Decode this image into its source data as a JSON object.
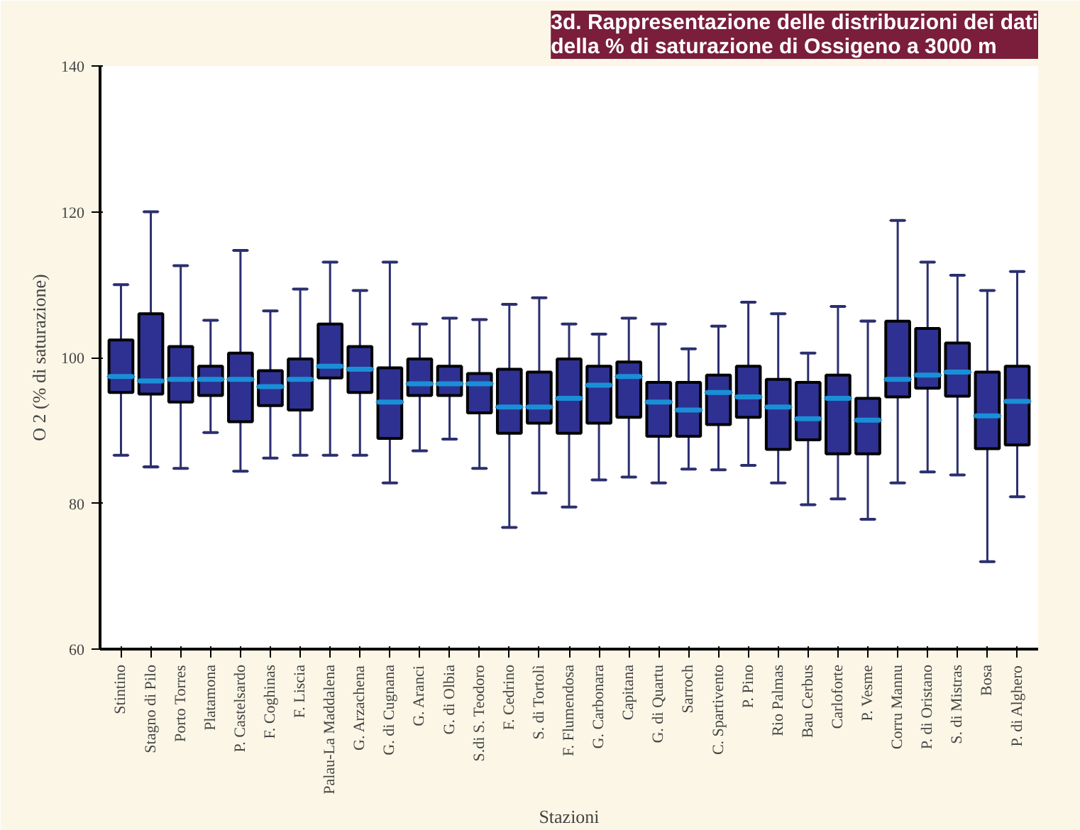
{
  "chart_data": {
    "type": "box",
    "title": "3d. Rappresentazione delle distribuzioni dei dati\ndella % di saturazione di Ossigeno a 3000 m",
    "xlabel": "Stazioni",
    "ylabel": "O 2 (% di saturazione)",
    "categories": [
      "Stintino",
      "Stagno di Pilo",
      "Porto Torres",
      "Platamona",
      "P. Castelsardo",
      "F. Coghinas",
      "F. Liscia",
      "Palau-La Maddalena",
      "G. Arzachena",
      "G. di Cugnana",
      "G. Aranci",
      "G. di Olbia",
      "S.di S. Teodoro",
      "F. Cedrino",
      "S. di Tortolì",
      "F. Flumendosa",
      "G. Carbonara",
      "Capitana",
      "G. di Quartu",
      "Sarroch",
      "C. Spartivento",
      "P. Pino",
      "Rio Palmas",
      "Bau Cerbus",
      "Carloforte",
      "P. Vesme",
      "Corru Mannu",
      "P. di Oristano",
      "S. di Mistras",
      "Bosa",
      "P. di Alghero"
    ],
    "series": [
      {
        "color": "#2e3192",
        "boxes": [
          {
            "low": 86.6,
            "q1": 95.2,
            "median": 97.4,
            "q3": 102.4,
            "high": 110
          },
          {
            "low": 85,
            "q1": 95,
            "median": 96.8,
            "q3": 106,
            "high": 120
          },
          {
            "low": 84.8,
            "q1": 93.9,
            "median": 97,
            "q3": 101.5,
            "high": 112.6
          },
          {
            "low": 89.7,
            "q1": 94.8,
            "median": 97,
            "q3": 98.8,
            "high": 105.1
          },
          {
            "low": 84.4,
            "q1": 91.2,
            "median": 97,
            "q3": 100.6,
            "high": 114.7
          },
          {
            "low": 86.2,
            "q1": 93.4,
            "median": 96,
            "q3": 98.2,
            "high": 106.4
          },
          {
            "low": 86.6,
            "q1": 92.8,
            "median": 97,
            "q3": 99.8,
            "high": 109.4
          },
          {
            "low": 86.6,
            "q1": 97.2,
            "median": 98.8,
            "q3": 104.6,
            "high": 113.1
          },
          {
            "low": 86.6,
            "q1": 95.2,
            "median": 98.4,
            "q3": 101.5,
            "high": 109.2
          },
          {
            "low": 82.8,
            "q1": 88.9,
            "median": 93.9,
            "q3": 98.6,
            "high": 113.1
          },
          {
            "low": 87.2,
            "q1": 94.8,
            "median": 96.4,
            "q3": 99.8,
            "high": 104.6
          },
          {
            "low": 88.8,
            "q1": 94.8,
            "median": 96.4,
            "q3": 98.8,
            "high": 105.4
          },
          {
            "low": 84.8,
            "q1": 92.4,
            "median": 96.4,
            "q3": 97.8,
            "high": 105.2
          },
          {
            "low": 76.7,
            "q1": 89.6,
            "median": 93.2,
            "q3": 98.4,
            "high": 107.3
          },
          {
            "low": 81.4,
            "q1": 91,
            "median": 93.2,
            "q3": 98,
            "high": 108.2
          },
          {
            "low": 79.5,
            "q1": 89.6,
            "median": 94.4,
            "q3": 99.8,
            "high": 104.6
          },
          {
            "low": 83.2,
            "q1": 91,
            "median": 96.2,
            "q3": 98.8,
            "high": 103.2
          },
          {
            "low": 83.6,
            "q1": 91.8,
            "median": 97.4,
            "q3": 99.4,
            "high": 105.4
          },
          {
            "low": 82.8,
            "q1": 89.2,
            "median": 93.9,
            "q3": 96.6,
            "high": 104.6
          },
          {
            "low": 84.7,
            "q1": 89.2,
            "median": 92.8,
            "q3": 96.6,
            "high": 101.2
          },
          {
            "low": 84.6,
            "q1": 90.8,
            "median": 95.2,
            "q3": 97.6,
            "high": 104.3
          },
          {
            "low": 85.2,
            "q1": 91.8,
            "median": 94.6,
            "q3": 98.8,
            "high": 107.6
          },
          {
            "low": 82.8,
            "q1": 87.4,
            "median": 93.2,
            "q3": 97,
            "high": 106
          },
          {
            "low": 79.8,
            "q1": 88.7,
            "median": 91.6,
            "q3": 96.6,
            "high": 100.6
          },
          {
            "low": 80.6,
            "q1": 86.8,
            "median": 94.4,
            "q3": 97.6,
            "high": 107
          },
          {
            "low": 77.8,
            "q1": 86.8,
            "median": 91.4,
            "q3": 94.4,
            "high": 105
          },
          {
            "low": 82.8,
            "q1": 94.6,
            "median": 97,
            "q3": 105,
            "high": 118.8
          },
          {
            "low": 84.3,
            "q1": 95.8,
            "median": 97.6,
            "q3": 104,
            "high": 113.1
          },
          {
            "low": 83.9,
            "q1": 94.7,
            "median": 98,
            "q3": 102,
            "high": 111.3
          },
          {
            "low": 72,
            "q1": 87.5,
            "median": 92,
            "q3": 98,
            "high": 109.2
          },
          {
            "low": 80.9,
            "q1": 88,
            "median": 94,
            "q3": 98.8,
            "high": 111.8
          }
        ]
      }
    ],
    "ylim": [
      60,
      140
    ],
    "yticks": [
      60,
      80,
      100,
      120,
      140
    ],
    "grid": false
  }
}
